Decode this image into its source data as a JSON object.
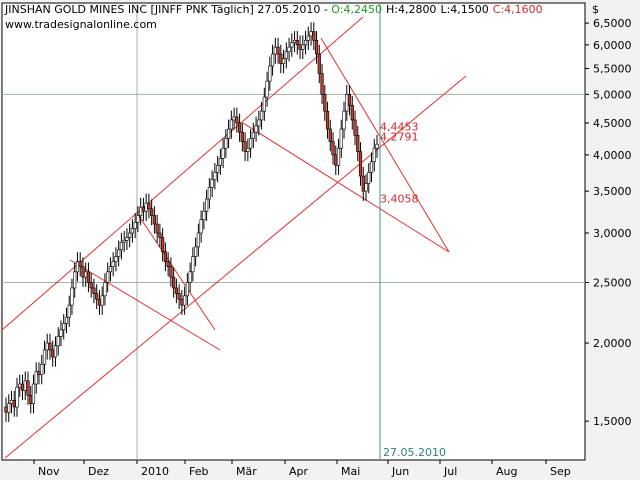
{
  "header": {
    "title": "JINSHAN GOLD MINES INC [JINFF PNK  Täglich] 27.05.2010 - ",
    "o": "O:4,2450",
    "h": "H:4,2800",
    "l": "L:4,1500",
    "c": "C:4,1600",
    "source": "www.tradesignalonline.com",
    "currency": "$"
  },
  "colors": {
    "background": "#f2f2f2",
    "axis_bg": "#ffffff",
    "grid": "#9fb3a6",
    "candle_up": "#ffffff",
    "candle_down": "#c0392b",
    "candle_outline": "#000000",
    "trendline": "#e03030",
    "crosshair": "#4b8c8c",
    "label_red": "#d42a2a",
    "label_teal": "#2f7f7f",
    "open_green": "#1a9a1a",
    "high_blue": "#000000",
    "close_red": "#d42a2a"
  },
  "chart_data": {
    "type": "candlestick",
    "title": "JINSHAN GOLD MINES INC [JINFF PNK  Täglich] 27.05.2010",
    "scale": "log",
    "ylim": [
      1.3,
      7.0
    ],
    "y_ticks": [
      {
        "value": 1.5,
        "label": "1,5000"
      },
      {
        "value": 2.0,
        "label": "2,0000"
      },
      {
        "value": 2.5,
        "label": "2,5000"
      },
      {
        "value": 3.0,
        "label": "3,0000"
      },
      {
        "value": 3.5,
        "label": "3,5000"
      },
      {
        "value": 4.0,
        "label": "4,0000"
      },
      {
        "value": 4.5,
        "label": "4,5000"
      },
      {
        "value": 5.0,
        "label": "5,0000"
      },
      {
        "value": 5.5,
        "label": "5,5000"
      },
      {
        "value": 6.0,
        "label": "6,0000"
      },
      {
        "value": 6.5,
        "label": "6,5000"
      }
    ],
    "x_ticks": [
      "Nov",
      "Dez",
      "2010",
      "Feb",
      "Mär",
      "Apr",
      "Mai",
      "Jun",
      "Jul",
      "Aug",
      "Sep"
    ],
    "grid_y_values": [
      2.5,
      5.0
    ],
    "grid_x_label": "2010",
    "current_date_label": "27.05.2010",
    "price_labels": [
      {
        "value": 4.4453,
        "label": "4,4453"
      },
      {
        "value": 4.2791,
        "label": "4,2791"
      },
      {
        "value": 3.4058,
        "label": "3,4058"
      }
    ],
    "closes": [
      1.55,
      1.6,
      1.62,
      1.58,
      1.7,
      1.72,
      1.68,
      1.74,
      1.65,
      1.6,
      1.72,
      1.8,
      1.78,
      1.85,
      1.95,
      2.0,
      1.95,
      1.9,
      1.98,
      2.05,
      2.1,
      2.15,
      2.2,
      2.3,
      2.45,
      2.6,
      2.7,
      2.65,
      2.55,
      2.6,
      2.5,
      2.45,
      2.4,
      2.35,
      2.3,
      2.38,
      2.5,
      2.6,
      2.65,
      2.7,
      2.75,
      2.82,
      2.9,
      2.92,
      2.95,
      3.0,
      3.05,
      3.12,
      3.2,
      3.3,
      3.25,
      3.35,
      3.28,
      3.2,
      3.1,
      3.0,
      2.95,
      2.8,
      2.7,
      2.65,
      2.55,
      2.45,
      2.4,
      2.35,
      2.3,
      2.38,
      2.5,
      2.6,
      2.75,
      2.85,
      3.0,
      3.15,
      3.25,
      3.4,
      3.55,
      3.65,
      3.75,
      3.85,
      3.95,
      4.1,
      4.25,
      4.4,
      4.55,
      4.6,
      4.5,
      4.35,
      4.2,
      4.05,
      4.1,
      4.25,
      4.35,
      4.45,
      4.55,
      4.7,
      4.95,
      5.25,
      5.55,
      5.8,
      5.95,
      5.8,
      5.6,
      5.7,
      5.85,
      5.95,
      6.05,
      6.1,
      6.0,
      5.9,
      6.0,
      6.1,
      6.2,
      6.3,
      6.1,
      5.8,
      5.4,
      5.0,
      4.7,
      4.4,
      4.2,
      4.0,
      3.85,
      4.1,
      4.4,
      4.7,
      5.0,
      4.8,
      4.55,
      4.3,
      4.05,
      3.7,
      3.5,
      3.6,
      3.75,
      3.9,
      4.1,
      4.16
    ]
  }
}
